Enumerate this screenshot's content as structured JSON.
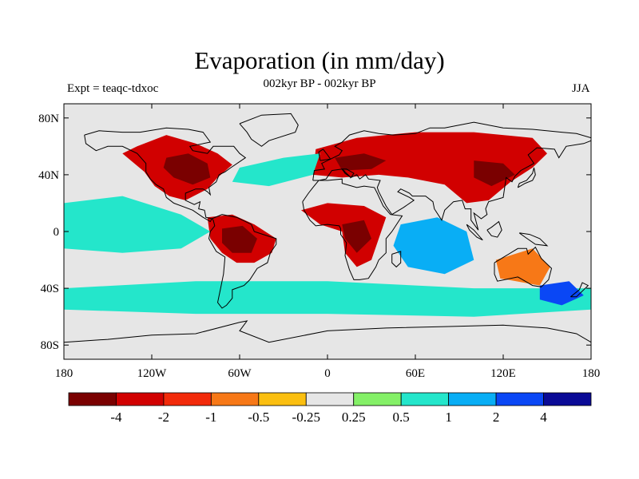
{
  "header": {
    "title": "Evaporation (in mm/day)",
    "subtitle": "002kyr BP - 002kyr BP",
    "left_label": "Expt = teaqc-tdxoc",
    "right_label": "JJA"
  },
  "map": {
    "projection": "cylindrical-equidistant",
    "lon_range": [
      -180,
      180
    ],
    "lat_range": [
      -90,
      90
    ],
    "background_color": "#e6e6e6",
    "coastline_color": "#000000",
    "lon_ticks": [
      {
        "value": -180,
        "label": "180"
      },
      {
        "value": -120,
        "label": "120W"
      },
      {
        "value": -60,
        "label": "60W"
      },
      {
        "value": 0,
        "label": "0"
      },
      {
        "value": 60,
        "label": "60E"
      },
      {
        "value": 120,
        "label": "120E"
      },
      {
        "value": 180,
        "label": "180"
      }
    ],
    "lat_ticks": [
      {
        "value": 80,
        "label": "80N"
      },
      {
        "value": 40,
        "label": "40N"
      },
      {
        "value": 0,
        "label": "0"
      },
      {
        "value": -40,
        "label": "40S"
      },
      {
        "value": -80,
        "label": "80S"
      }
    ],
    "regions": [
      {
        "name": "north-america-dry",
        "level": -2,
        "points": [
          [
            -130,
            60
          ],
          [
            -110,
            68
          ],
          [
            -90,
            62
          ],
          [
            -75,
            55
          ],
          [
            -65,
            47
          ],
          [
            -75,
            38
          ],
          [
            -82,
            30
          ],
          [
            -97,
            22
          ],
          [
            -108,
            25
          ],
          [
            -118,
            32
          ],
          [
            -125,
            42
          ],
          [
            -140,
            55
          ]
        ]
      },
      {
        "name": "north-america-core",
        "level": -4,
        "points": [
          [
            -110,
            52
          ],
          [
            -95,
            55
          ],
          [
            -82,
            48
          ],
          [
            -80,
            38
          ],
          [
            -92,
            33
          ],
          [
            -105,
            38
          ],
          [
            -112,
            45
          ]
        ]
      },
      {
        "name": "amazon-dry",
        "level": -2,
        "points": [
          [
            -82,
            10
          ],
          [
            -65,
            12
          ],
          [
            -50,
            5
          ],
          [
            -35,
            -5
          ],
          [
            -38,
            -15
          ],
          [
            -50,
            -22
          ],
          [
            -62,
            -22
          ],
          [
            -72,
            -15
          ],
          [
            -80,
            -5
          ]
        ]
      },
      {
        "name": "amazon-core",
        "level": -4,
        "points": [
          [
            -72,
            2
          ],
          [
            -58,
            4
          ],
          [
            -48,
            -5
          ],
          [
            -52,
            -15
          ],
          [
            -65,
            -15
          ],
          [
            -72,
            -8
          ]
        ]
      },
      {
        "name": "eurasia-dry",
        "level": -2,
        "points": [
          [
            -8,
            58
          ],
          [
            20,
            66
          ],
          [
            60,
            70
          ],
          [
            100,
            70
          ],
          [
            140,
            66
          ],
          [
            150,
            55
          ],
          [
            140,
            45
          ],
          [
            125,
            35
          ],
          [
            110,
            22
          ],
          [
            95,
            20
          ],
          [
            80,
            33
          ],
          [
            55,
            38
          ],
          [
            35,
            40
          ],
          [
            10,
            38
          ],
          [
            -10,
            40
          ]
        ]
      },
      {
        "name": "europe-core",
        "level": -4,
        "points": [
          [
            5,
            52
          ],
          [
            25,
            55
          ],
          [
            40,
            50
          ],
          [
            30,
            44
          ],
          [
            10,
            43
          ]
        ]
      },
      {
        "name": "asia-core",
        "level": -4,
        "points": [
          [
            100,
            50
          ],
          [
            120,
            48
          ],
          [
            128,
            40
          ],
          [
            112,
            32
          ],
          [
            100,
            38
          ]
        ]
      },
      {
        "name": "africa-dry",
        "level": -2,
        "points": [
          [
            -18,
            15
          ],
          [
            0,
            20
          ],
          [
            25,
            18
          ],
          [
            40,
            10
          ],
          [
            35,
            -5
          ],
          [
            30,
            -20
          ],
          [
            20,
            -25
          ],
          [
            12,
            -15
          ],
          [
            10,
            0
          ],
          [
            -5,
            5
          ]
        ]
      },
      {
        "name": "africa-core",
        "level": -4,
        "points": [
          [
            10,
            5
          ],
          [
            25,
            8
          ],
          [
            30,
            -5
          ],
          [
            20,
            -15
          ],
          [
            12,
            -5
          ]
        ]
      },
      {
        "name": "pacific-wet-band",
        "level": 1,
        "points": [
          [
            -180,
            20
          ],
          [
            -140,
            25
          ],
          [
            -100,
            12
          ],
          [
            -80,
            0
          ],
          [
            -100,
            -12
          ],
          [
            -140,
            -15
          ],
          [
            -180,
            -12
          ]
        ]
      },
      {
        "name": "indian-ocean-wet",
        "level": 2,
        "points": [
          [
            50,
            5
          ],
          [
            75,
            10
          ],
          [
            95,
            0
          ],
          [
            100,
            -20
          ],
          [
            80,
            -30
          ],
          [
            55,
            -25
          ],
          [
            45,
            -10
          ]
        ]
      },
      {
        "name": "southern-ocean-wet",
        "level": 1,
        "points": [
          [
            -180,
            -40
          ],
          [
            -90,
            -35
          ],
          [
            0,
            -35
          ],
          [
            100,
            -40
          ],
          [
            180,
            -40
          ],
          [
            180,
            -55
          ],
          [
            100,
            -60
          ],
          [
            0,
            -58
          ],
          [
            -90,
            -58
          ],
          [
            -180,
            -55
          ]
        ]
      },
      {
        "name": "north-atlantic-wet",
        "level": 1,
        "points": [
          [
            -60,
            45
          ],
          [
            -30,
            52
          ],
          [
            -5,
            55
          ],
          [
            -10,
            40
          ],
          [
            -40,
            32
          ],
          [
            -65,
            35
          ]
        ]
      },
      {
        "name": "tasman-wet",
        "level": 4,
        "points": [
          [
            145,
            -38
          ],
          [
            165,
            -35
          ],
          [
            175,
            -45
          ],
          [
            160,
            -52
          ],
          [
            145,
            -48
          ]
        ]
      },
      {
        "name": "australia-dry",
        "level": -0.5,
        "points": [
          [
            115,
            -20
          ],
          [
            140,
            -12
          ],
          [
            152,
            -25
          ],
          [
            145,
            -38
          ],
          [
            118,
            -33
          ]
        ]
      }
    ]
  },
  "colorbar": {
    "colors": [
      "#7a0000",
      "#d10000",
      "#f22a0a",
      "#f77817",
      "#fbbf10",
      "#e6e6e6",
      "#84f067",
      "#24e6cb",
      "#09aef5",
      "#0a47f5",
      "#0a0a96"
    ],
    "labels": [
      "-4",
      "-2",
      "-1",
      "-0.5",
      "-0.25",
      "0.25",
      "0.5",
      "1",
      "2",
      "4"
    ]
  }
}
